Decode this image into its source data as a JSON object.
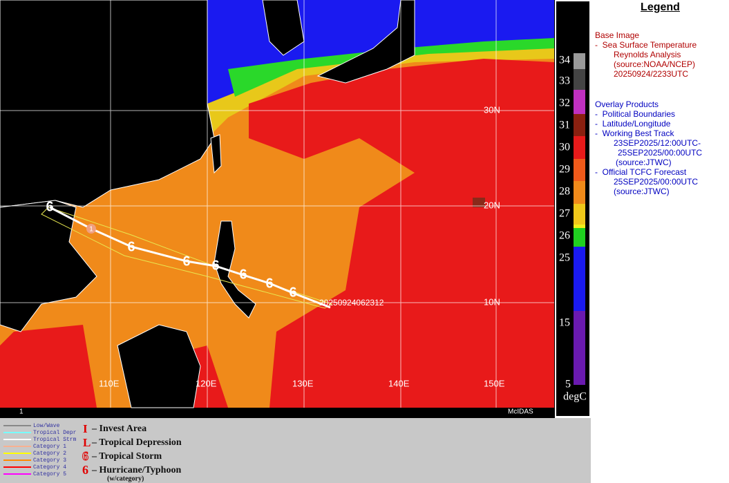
{
  "map": {
    "lat_labels": [
      "30N",
      "20N",
      "10N"
    ],
    "lon_labels": [
      "110E",
      "120E",
      "130E",
      "140E",
      "150E"
    ],
    "frame_number": "1",
    "software": "McIDAS",
    "track_label": "20250924062312",
    "forecast_point": "1"
  },
  "colorbar": {
    "ticks": [
      34,
      33,
      32,
      31,
      30,
      29,
      28,
      27,
      26,
      25,
      15,
      5
    ],
    "unit": "degC"
  },
  "legend": {
    "title": "Legend",
    "base_image_heading": "Base Image",
    "base_image": [
      "-  Sea Surface Temperature",
      "Reynolds Analysis",
      "(source:NOAA/NCEP)",
      "20250924/2233UTC"
    ],
    "overlay_heading": "Overlay Products",
    "overlays": [
      "-  Political Boundaries",
      "-  Latitude/Longitude",
      "-  Working Best Track",
      "23SEP2025/12:00UTC-",
      "25SEP2025/00:00UTC",
      "(source:JTWC)",
      "-  Official TCFC Forecast",
      "25SEP2025/00:00UTC",
      "(source:JTWC)"
    ]
  },
  "track_legend": {
    "lines": [
      "Low/Wave",
      "Tropical Depr",
      "Tropical Strm",
      "Category 1",
      "Category 2",
      "Category 3",
      "Category 4",
      "Category 5"
    ],
    "symbols": [
      {
        "symbol": "I",
        "label": "– Invest Area"
      },
      {
        "symbol": "L",
        "label": "– Tropical Depression"
      },
      {
        "symbol": "",
        "label": "– Tropical Storm"
      },
      {
        "symbol": "",
        "label": "– Hurricane/Typhoon"
      }
    ],
    "note": "(w/category)"
  }
}
